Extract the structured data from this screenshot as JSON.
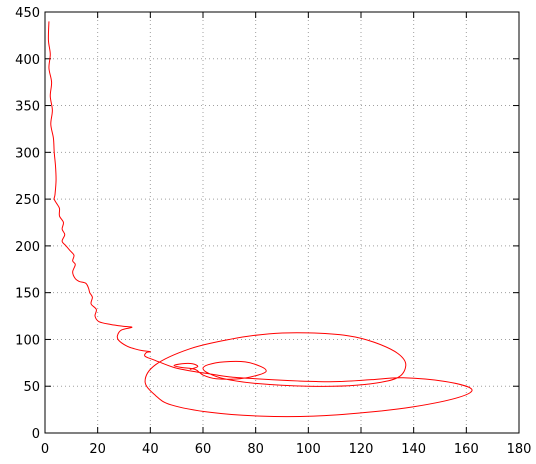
{
  "chart_data": {
    "type": "line",
    "title": "",
    "xlabel": "",
    "ylabel": "",
    "xlim": [
      0,
      180
    ],
    "ylim": [
      0,
      450
    ],
    "xticks": [
      0,
      20,
      40,
      60,
      80,
      100,
      120,
      140,
      160,
      180
    ],
    "yticks": [
      0,
      50,
      100,
      150,
      200,
      250,
      300,
      350,
      400,
      450
    ],
    "grid": true,
    "legend": "none",
    "series": [
      {
        "color": "#ff0000",
        "points": [
          [
            1.5,
            440
          ],
          [
            1.3,
            420
          ],
          [
            2.0,
            405
          ],
          [
            1.5,
            390
          ],
          [
            2.5,
            375
          ],
          [
            2.0,
            360
          ],
          [
            2.8,
            345
          ],
          [
            2.2,
            330
          ],
          [
            3.2,
            315
          ],
          [
            3.5,
            300
          ],
          [
            4.0,
            285
          ],
          [
            4.2,
            270
          ],
          [
            3.8,
            255
          ],
          [
            3.5,
            250
          ],
          [
            4.5,
            245
          ],
          [
            5.5,
            240
          ],
          [
            5.5,
            232
          ],
          [
            7.0,
            225
          ],
          [
            6.5,
            218
          ],
          [
            7.5,
            212
          ],
          [
            6.5,
            205
          ],
          [
            8.0,
            200
          ],
          [
            9.5,
            195
          ],
          [
            11,
            190
          ],
          [
            10.5,
            184
          ],
          [
            11.5,
            180
          ],
          [
            10.5,
            172
          ],
          [
            11.5,
            165
          ],
          [
            13,
            162
          ],
          [
            15.5,
            160
          ],
          [
            16.5,
            155
          ],
          [
            17,
            150
          ],
          [
            18,
            145
          ],
          [
            17.5,
            138
          ],
          [
            19.5,
            132
          ],
          [
            19,
            125
          ],
          [
            20.5,
            119
          ],
          [
            25,
            116
          ],
          [
            30,
            114
          ],
          [
            33,
            113
          ],
          [
            29,
            110
          ],
          [
            27.5,
            104
          ],
          [
            28,
            99
          ],
          [
            31,
            93
          ],
          [
            34,
            90
          ],
          [
            37,
            88
          ],
          [
            40,
            87
          ],
          [
            38.5,
            86
          ],
          [
            38,
            82
          ],
          [
            41.5,
            78
          ],
          [
            49,
            70
          ],
          [
            56,
            66
          ],
          [
            63,
            63
          ],
          [
            70,
            60
          ],
          [
            80,
            58
          ],
          [
            93,
            56
          ],
          [
            103,
            55
          ],
          [
            112,
            55
          ],
          [
            124,
            57
          ],
          [
            136,
            59
          ],
          [
            152,
            55
          ],
          [
            162,
            47
          ],
          [
            157,
            38
          ],
          [
            140,
            28
          ],
          [
            122,
            22
          ],
          [
            102,
            18
          ],
          [
            82,
            18
          ],
          [
            63,
            22
          ],
          [
            48,
            30
          ],
          [
            42,
            40
          ],
          [
            38,
            55
          ],
          [
            42,
            73
          ],
          [
            55,
            90
          ],
          [
            70,
            100
          ],
          [
            85,
            106
          ],
          [
            100,
            107
          ],
          [
            115,
            104
          ],
          [
            125,
            97
          ],
          [
            134,
            85
          ],
          [
            137,
            72
          ],
          [
            133,
            58
          ],
          [
            118,
            51
          ],
          [
            100,
            50
          ],
          [
            80,
            53
          ],
          [
            68,
            58
          ],
          [
            62,
            64
          ],
          [
            60,
            69
          ],
          [
            62,
            73
          ],
          [
            68,
            76
          ],
          [
            76,
            76
          ],
          [
            82,
            71
          ],
          [
            84,
            66
          ],
          [
            81,
            62
          ],
          [
            74,
            58
          ],
          [
            65,
            58
          ],
          [
            60,
            62
          ],
          [
            57,
            68
          ],
          [
            52,
            70
          ],
          [
            49,
            72
          ],
          [
            52,
            74
          ],
          [
            56,
            74
          ],
          [
            58,
            71
          ],
          [
            55,
            68
          ]
        ]
      }
    ]
  }
}
